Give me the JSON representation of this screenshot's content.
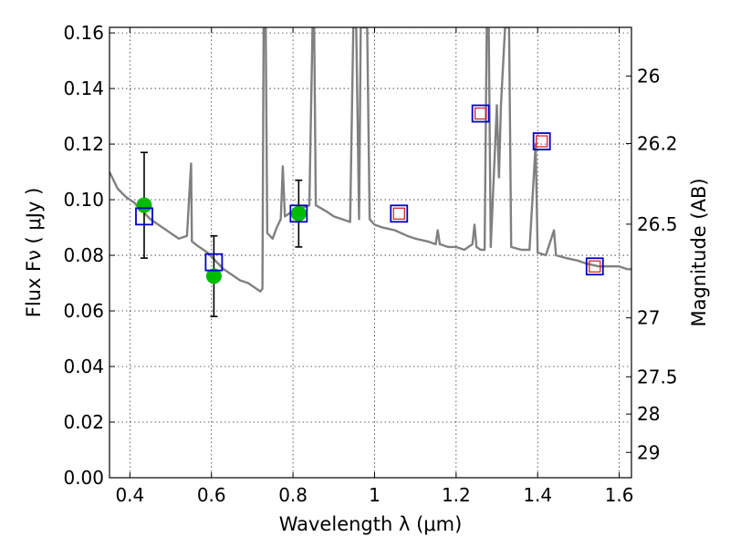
{
  "chart_data": {
    "type": "scatter",
    "xlabel": "Wavelength  λ (μm)",
    "ylabel": "Flux  Fν ( μJy )",
    "ylabel_right": "Magnitude (AB)",
    "xlim": [
      0.35,
      1.63
    ],
    "ylim": [
      0.0,
      0.162
    ],
    "grid": true,
    "x_ticks": [
      0.4,
      0.6,
      0.8,
      1.0,
      1.2,
      1.4,
      1.6
    ],
    "x_tick_labels": [
      "0.4",
      "0.6",
      "0.8",
      "1",
      "1.2",
      "1.4",
      "1.6"
    ],
    "y_ticks": [
      0.0,
      0.02,
      0.04,
      0.06,
      0.08,
      0.1,
      0.12,
      0.14,
      0.16
    ],
    "y_tick_labels": [
      "0.00",
      "0.02",
      "0.04",
      "0.06",
      "0.08",
      "0.10",
      "0.12",
      "0.14",
      "0.16"
    ],
    "right_ticks": [
      {
        "label": "26",
        "flux": 0.1445
      },
      {
        "label": "26.2",
        "flux": 0.1202
      },
      {
        "label": "26.5",
        "flux": 0.0912
      },
      {
        "label": "27",
        "flux": 0.0575
      },
      {
        "label": "27.5",
        "flux": 0.0363
      },
      {
        "label": "28",
        "flux": 0.0229
      },
      {
        "label": "29",
        "flux": 0.0091
      }
    ],
    "series": [
      {
        "name": "SED model",
        "kind": "line",
        "color": "#808080",
        "points": [
          [
            0.35,
            0.11
          ],
          [
            0.37,
            0.104
          ],
          [
            0.39,
            0.101
          ],
          [
            0.41,
            0.099
          ],
          [
            0.43,
            0.096
          ],
          [
            0.45,
            0.093
          ],
          [
            0.47,
            0.091
          ],
          [
            0.49,
            0.089
          ],
          [
            0.5,
            0.088
          ],
          [
            0.52,
            0.086
          ],
          [
            0.54,
            0.087
          ],
          [
            0.55,
            0.113
          ],
          [
            0.552,
            0.085
          ],
          [
            0.57,
            0.083
          ],
          [
            0.59,
            0.081
          ],
          [
            0.61,
            0.078
          ],
          [
            0.63,
            0.075
          ],
          [
            0.65,
            0.073
          ],
          [
            0.67,
            0.071
          ],
          [
            0.69,
            0.07
          ],
          [
            0.71,
            0.068
          ],
          [
            0.72,
            0.067
          ],
          [
            0.725,
            0.068
          ],
          [
            0.728,
            0.162
          ],
          [
            0.733,
            0.162
          ],
          [
            0.737,
            0.088
          ],
          [
            0.75,
            0.086
          ],
          [
            0.76,
            0.09
          ],
          [
            0.77,
            0.093
          ],
          [
            0.775,
            0.112
          ],
          [
            0.78,
            0.094
          ],
          [
            0.8,
            0.096
          ],
          [
            0.82,
            0.097
          ],
          [
            0.84,
            0.098
          ],
          [
            0.848,
            0.162
          ],
          [
            0.852,
            0.162
          ],
          [
            0.856,
            0.098
          ],
          [
            0.88,
            0.096
          ],
          [
            0.9,
            0.094
          ],
          [
            0.92,
            0.093
          ],
          [
            0.94,
            0.092
          ],
          [
            0.948,
            0.162
          ],
          [
            0.955,
            0.162
          ],
          [
            0.962,
            0.093
          ],
          [
            0.966,
            0.162
          ],
          [
            0.972,
            0.162
          ],
          [
            0.978,
            0.162
          ],
          [
            0.982,
            0.162
          ],
          [
            0.988,
            0.093
          ],
          [
            1.0,
            0.091
          ],
          [
            1.02,
            0.09
          ],
          [
            1.05,
            0.089
          ],
          [
            1.08,
            0.087
          ],
          [
            1.1,
            0.086
          ],
          [
            1.13,
            0.085
          ],
          [
            1.15,
            0.084
          ],
          [
            1.155,
            0.089
          ],
          [
            1.16,
            0.084
          ],
          [
            1.18,
            0.083
          ],
          [
            1.2,
            0.083
          ],
          [
            1.22,
            0.082
          ],
          [
            1.24,
            0.084
          ],
          [
            1.245,
            0.091
          ],
          [
            1.25,
            0.083
          ],
          [
            1.26,
            0.082
          ],
          [
            1.27,
            0.082
          ],
          [
            1.275,
            0.162
          ],
          [
            1.28,
            0.162
          ],
          [
            1.285,
            0.083
          ],
          [
            1.3,
            0.134
          ],
          [
            1.305,
            0.108
          ],
          [
            1.31,
            0.134
          ],
          [
            1.32,
            0.162
          ],
          [
            1.325,
            0.162
          ],
          [
            1.33,
            0.162
          ],
          [
            1.335,
            0.083
          ],
          [
            1.36,
            0.082
          ],
          [
            1.38,
            0.082
          ],
          [
            1.395,
            0.12
          ],
          [
            1.4,
            0.081
          ],
          [
            1.42,
            0.08
          ],
          [
            1.44,
            0.089
          ],
          [
            1.445,
            0.08
          ],
          [
            1.47,
            0.079
          ],
          [
            1.5,
            0.078
          ],
          [
            1.52,
            0.077
          ],
          [
            1.55,
            0.076
          ],
          [
            1.58,
            0.076
          ],
          [
            1.6,
            0.076
          ],
          [
            1.62,
            0.075
          ],
          [
            1.63,
            0.075
          ]
        ]
      },
      {
        "name": "Observed photometry",
        "kind": "errorbar",
        "color": "#000000",
        "points": [
          {
            "x": 0.435,
            "y": 0.098,
            "ylo": 0.079,
            "yhi": 0.117
          },
          {
            "x": 0.606,
            "y": 0.0725,
            "ylo": 0.058,
            "yhi": 0.087
          },
          {
            "x": 0.814,
            "y": 0.095,
            "ylo": 0.083,
            "yhi": 0.107
          }
        ]
      },
      {
        "name": "Detections",
        "kind": "circle",
        "color": "#00bb00",
        "points": [
          [
            0.435,
            0.098
          ],
          [
            0.606,
            0.0725
          ],
          [
            0.814,
            0.095
          ]
        ]
      },
      {
        "name": "Model photometry",
        "kind": "square",
        "color": "#0000cc",
        "points": [
          [
            0.435,
            0.094
          ],
          [
            0.606,
            0.0775
          ],
          [
            0.814,
            0.095
          ],
          [
            1.06,
            0.095
          ],
          [
            1.26,
            0.131
          ],
          [
            1.41,
            0.121
          ],
          [
            1.54,
            0.076
          ]
        ]
      },
      {
        "name": "Predicted magnitudes",
        "kind": "square-small",
        "color": "#dd2222",
        "points": [
          [
            1.06,
            0.095
          ],
          [
            1.26,
            0.131
          ],
          [
            1.41,
            0.121
          ],
          [
            1.54,
            0.076
          ]
        ]
      }
    ]
  }
}
